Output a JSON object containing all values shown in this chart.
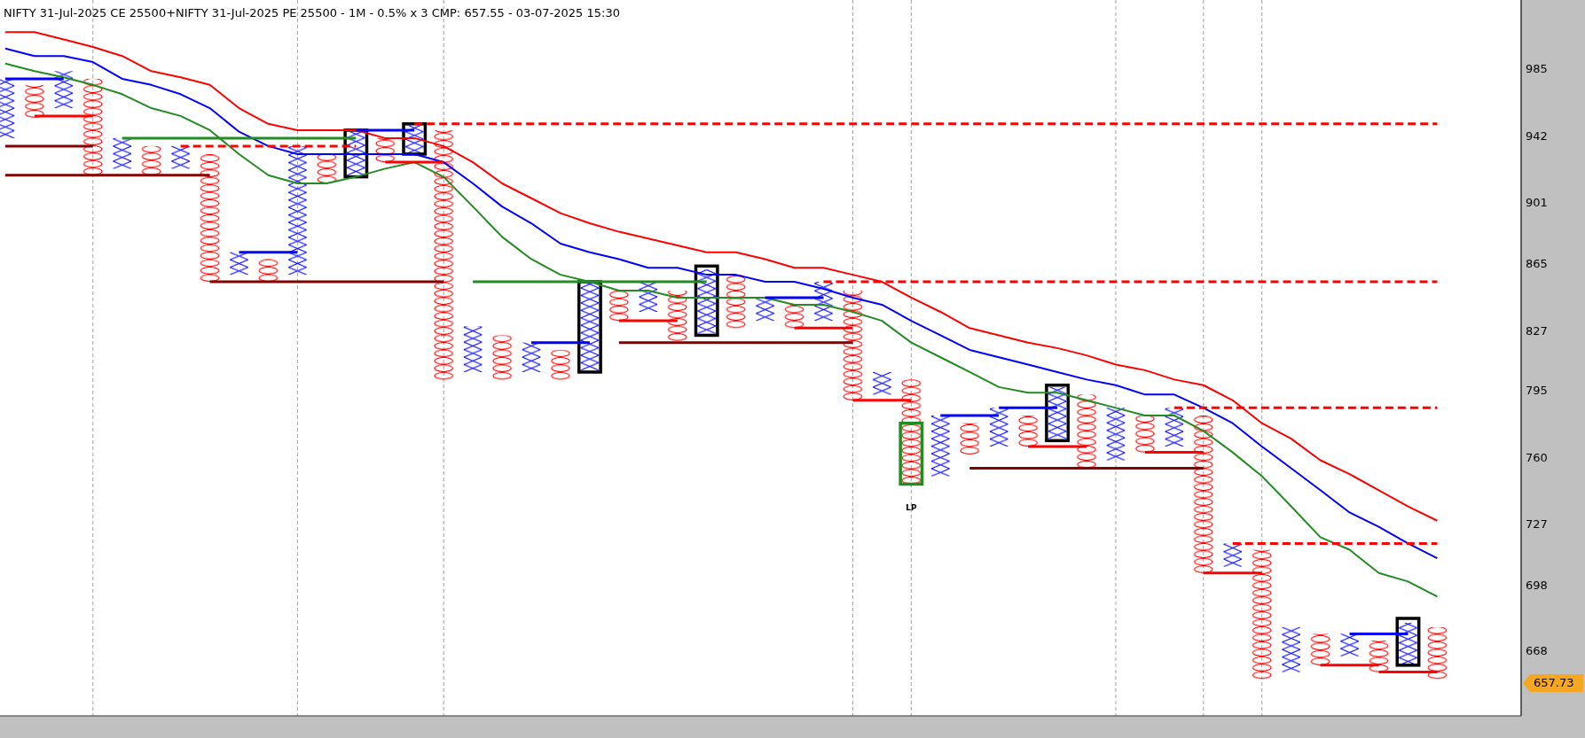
{
  "chart_data": {
    "type": "bar",
    "title": "NIFTY 31-Jul-2025 CE 25500+NIFTY 31-Jul-2025 PE 25500 - 1M - 0.5% x 3 CMP: 657.55 - 03-07-2025 15:30",
    "log": true,
    "tick_labels": "y",
    "ylim": [
      640,
      1030
    ],
    "yticks": [
      668,
      698,
      727,
      760,
      795,
      827,
      865,
      901,
      942,
      985
    ],
    "categories": [
      null,
      null,
      null,
      null,
      null,
      null,
      null,
      null,
      null,
      null,
      null,
      null,
      null,
      null,
      null,
      null,
      null,
      null,
      null,
      null,
      null,
      null,
      null,
      null,
      null,
      null,
      null,
      null,
      null,
      null,
      null,
      null,
      null,
      null,
      null,
      null,
      null,
      null,
      null,
      null,
      null,
      null,
      null,
      null,
      null,
      null,
      null,
      null,
      null,
      null
    ],
    "series": [
      {
        "base": [
          941,
          975,
          960,
          979,
          922,
          936,
          922,
          931,
          859,
          868,
          859,
          931,
          918,
          941,
          931,
          946,
          805,
          825,
          805,
          817,
          806,
          850,
          838,
          850,
          826,
          859,
          833,
          842,
          833,
          850,
          793,
          801,
          751,
          778,
          766,
          782,
          770,
          793,
          759,
          782,
          766,
          782,
          707,
          715,
          659,
          676,
          666,
          673,
          662,
          679
        ],
        "values": [
          38,
          -21,
          24,
          -61,
          19,
          -18,
          14,
          -76,
          13,
          -13,
          77,
          -18,
          27,
          -15,
          18,
          -145,
          25,
          -24,
          16,
          -16,
          48,
          -17,
          17,
          -28,
          36,
          -30,
          13,
          -13,
          22,
          -60,
          12,
          -54,
          31,
          -16,
          20,
          -16,
          27,
          -38,
          27,
          -19,
          20,
          -78,
          11,
          -59,
          20,
          -14,
          10,
          -14,
          19,
          -23
        ],
        "colors": [
          "#0000ff",
          "#ff0000",
          "#0000ff",
          "#ff0000",
          "#0000ff",
          "#ff0000",
          "#0000ff",
          "#ff0000",
          "#0000ff",
          "#ff0000",
          "#0000ff",
          "#ff0000",
          "#0000ff",
          "#ff0000",
          "#0000ff",
          "#ff0000",
          "#0000ff",
          "#ff0000",
          "#0000ff",
          "#ff0000",
          "#0000ff",
          "#ff0000",
          "#0000ff",
          "#ff0000",
          "#0000ff",
          "#ff0000",
          "#0000ff",
          "#ff0000",
          "#0000ff",
          "#ff0000",
          "#0000ff",
          "#ff0000",
          "#0000ff",
          "#ff0000",
          "#0000ff",
          "#ff0000",
          "#0000ff",
          "#ff0000",
          "#0000ff",
          "#ff0000",
          "#0000ff",
          "#ff0000",
          "#0000ff",
          "#ff0000",
          "#0000ff",
          "#ff0000",
          "#0000ff",
          "#ff0000",
          "#0000ff",
          "#ff0000"
        ]
      },
      {
        "type": "bar",
        "marker": "none",
        "base": [
          null,
          null,
          null,
          null,
          null,
          null,
          null,
          null,
          null,
          null,
          null,
          null,
          917,
          null,
          931,
          null,
          null,
          null,
          null,
          null,
          805,
          null,
          null,
          null,
          825,
          null,
          null,
          null,
          null,
          null,
          null,
          747,
          null,
          null,
          null,
          null,
          769,
          null,
          null,
          null,
          null,
          null,
          null,
          null,
          null,
          null,
          null,
          null,
          662,
          null
        ],
        "values": [
          null,
          null,
          null,
          null,
          null,
          null,
          null,
          null,
          null,
          null,
          null,
          null,
          29,
          null,
          19,
          null,
          null,
          null,
          null,
          null,
          50,
          null,
          null,
          null,
          39,
          null,
          null,
          null,
          null,
          null,
          null,
          31,
          null,
          null,
          null,
          null,
          29,
          null,
          null,
          null,
          null,
          null,
          null,
          null,
          null,
          null,
          null,
          null,
          21,
          null
        ],
        "colors": [
          null,
          null,
          null,
          null,
          null,
          null,
          null,
          null,
          null,
          null,
          null,
          null,
          "#000000",
          null,
          "#000000",
          null,
          null,
          null,
          null,
          null,
          "#000000",
          null,
          null,
          null,
          "#000000",
          null,
          null,
          null,
          null,
          null,
          null,
          "#228b22",
          null,
          null,
          null,
          null,
          "#000000",
          null,
          null,
          null,
          null,
          null,
          null,
          null,
          null,
          null,
          null,
          null,
          "#000000",
          null
        ],
        "value_labels": [
          null,
          null,
          null,
          null,
          null,
          null,
          null,
          null,
          null,
          null,
          null,
          null,
          null,
          null,
          null,
          null,
          null,
          null,
          null,
          null,
          null,
          null,
          null,
          null,
          null,
          null,
          null,
          null,
          null,
          null,
          null,
          "LP",
          null,
          null,
          null,
          null,
          null,
          null,
          null,
          null,
          null,
          null,
          null,
          null,
          null,
          null,
          null,
          null,
          null,
          null
        ]
      },
      {
        "type": "line",
        "color": "#ff0000",
        "values": [
          1010,
          1010,
          1005,
          1000,
          994,
          984,
          980,
          975,
          960,
          950,
          946,
          946,
          946,
          941,
          941,
          936,
          926,
          913,
          904,
          895,
          889,
          884,
          880,
          876,
          872,
          872,
          868,
          863,
          863,
          859,
          855,
          846,
          838,
          829,
          825,
          821,
          818,
          814,
          809,
          806,
          801,
          798,
          790,
          778,
          770,
          759,
          752,
          744,
          736,
          729
        ]
      },
      {
        "type": "line",
        "color": "#0000ff",
        "values": [
          999,
          994,
          994,
          990,
          979,
          975,
          969,
          960,
          945,
          936,
          931,
          931,
          931,
          931,
          931,
          926,
          913,
          899,
          889,
          877,
          872,
          868,
          863,
          863,
          859,
          859,
          855,
          855,
          851,
          846,
          842,
          833,
          825,
          817,
          813,
          809,
          805,
          801,
          798,
          793,
          793,
          786,
          778,
          766,
          755,
          744,
          733,
          726,
          718,
          711
        ]
      },
      {
        "type": "line",
        "color": "#228b22",
        "values": [
          989,
          984,
          980,
          975,
          969,
          960,
          955,
          946,
          931,
          918,
          913,
          913,
          917,
          922,
          926,
          917,
          899,
          881,
          868,
          859,
          855,
          850,
          850,
          846,
          846,
          846,
          846,
          842,
          842,
          838,
          833,
          821,
          813,
          805,
          797,
          794,
          794,
          790,
          786,
          782,
          782,
          774,
          763,
          751,
          736,
          721,
          715,
          704,
          700,
          693
        ]
      },
      {
        "type": "line",
        "color": "#0000ff",
        "values": [
          979,
          979,
          979,
          null,
          null,
          null,
          null,
          null,
          null,
          null,
          null,
          null,
          null,
          null,
          null,
          null,
          null,
          null,
          null,
          null,
          null,
          null,
          null,
          null,
          null,
          null,
          null,
          null,
          null,
          null,
          null,
          null,
          null,
          null,
          null,
          null,
          null,
          null,
          null,
          null,
          null,
          null,
          null,
          null,
          null,
          null,
          null,
          null,
          null,
          null
        ]
      },
      {
        "type": "line",
        "color": "#ff0000",
        "values": [
          null,
          955,
          955,
          955,
          null,
          null,
          null,
          null,
          null,
          null,
          null,
          null,
          null,
          null,
          null,
          null,
          null,
          null,
          null,
          null,
          null,
          null,
          null,
          null,
          null,
          null,
          null,
          null,
          null,
          null,
          null,
          null,
          null,
          null,
          null,
          null,
          null,
          null,
          null,
          null,
          null,
          null,
          null,
          null,
          null,
          null,
          null,
          null,
          null,
          null
        ]
      },
      {
        "type": "line",
        "color": "#800000",
        "values": [
          936,
          936,
          936,
          936,
          null,
          null,
          null,
          null,
          null,
          null,
          null,
          null,
          null,
          null,
          null,
          null,
          null,
          null,
          null,
          null,
          null,
          null,
          null,
          null,
          null,
          null,
          null,
          null,
          null,
          null,
          null,
          null,
          null,
          null,
          null,
          null,
          null,
          null,
          null,
          null,
          null,
          null,
          null,
          null,
          null,
          null,
          null,
          null,
          null,
          null
        ]
      },
      {
        "type": "line",
        "color": "#800000",
        "values": [
          918,
          918,
          918,
          918,
          918,
          918,
          918,
          918,
          null,
          null,
          null,
          null,
          null,
          null,
          null,
          null,
          null,
          null,
          null,
          null,
          null,
          null,
          null,
          null,
          null,
          null,
          null,
          null,
          null,
          null,
          null,
          null,
          null,
          null,
          null,
          null,
          null,
          null,
          null,
          null,
          null,
          null,
          null,
          null,
          null,
          null,
          null,
          null,
          null,
          null
        ]
      },
      {
        "type": "line",
        "color": "#228b22",
        "values": [
          null,
          null,
          null,
          null,
          941,
          941,
          941,
          941,
          941,
          941,
          941,
          941,
          941,
          null,
          null,
          null,
          null,
          null,
          null,
          null,
          null,
          null,
          null,
          null,
          null,
          null,
          null,
          null,
          null,
          null,
          null,
          null,
          null,
          null,
          null,
          null,
          null,
          null,
          null,
          null,
          null,
          null,
          null,
          null,
          null,
          null,
          null,
          null,
          null,
          null
        ]
      },
      {
        "type": "line",
        "color": "#ff0000",
        "line_style": "dashed",
        "values": [
          null,
          null,
          null,
          null,
          null,
          null,
          936,
          936,
          936,
          936,
          936,
          936,
          936,
          null,
          null,
          null,
          null,
          null,
          null,
          null,
          null,
          null,
          null,
          null,
          null,
          null,
          null,
          null,
          null,
          null,
          null,
          null,
          null,
          null,
          null,
          null,
          null,
          null,
          null,
          null,
          null,
          null,
          null,
          null,
          null,
          null,
          null,
          null,
          null,
          null
        ]
      },
      {
        "type": "line",
        "color": "#0000ff",
        "values": [
          null,
          null,
          null,
          null,
          null,
          null,
          null,
          null,
          872,
          872,
          872,
          null,
          null,
          null,
          null,
          null,
          null,
          null,
          null,
          null,
          null,
          null,
          null,
          null,
          null,
          null,
          null,
          null,
          null,
          null,
          null,
          null,
          null,
          null,
          null,
          null,
          null,
          null,
          null,
          null,
          null,
          null,
          null,
          null,
          null,
          null,
          null,
          null,
          null,
          null
        ]
      },
      {
        "type": "line",
        "color": "#800000",
        "values": [
          null,
          null,
          null,
          null,
          null,
          null,
          null,
          855,
          855,
          855,
          855,
          855,
          855,
          855,
          855,
          855,
          null,
          null,
          null,
          null,
          null,
          null,
          null,
          null,
          null,
          null,
          null,
          null,
          null,
          null,
          null,
          null,
          null,
          null,
          null,
          null,
          null,
          null,
          null,
          null,
          null,
          null,
          null,
          null,
          null,
          null,
          null,
          null,
          null,
          null
        ]
      },
      {
        "type": "line",
        "color": "#0000ff",
        "values": [
          null,
          null,
          null,
          null,
          null,
          null,
          null,
          null,
          null,
          null,
          null,
          null,
          946,
          946,
          946,
          null,
          null,
          null,
          null,
          null,
          null,
          null,
          null,
          null,
          null,
          null,
          null,
          null,
          null,
          null,
          null,
          null,
          null,
          null,
          null,
          null,
          null,
          null,
          null,
          null,
          null,
          null,
          null,
          null,
          null,
          null,
          null,
          null,
          null,
          null
        ]
      },
      {
        "type": "line",
        "color": "#ff0000",
        "values": [
          null,
          null,
          null,
          null,
          null,
          null,
          null,
          null,
          null,
          null,
          null,
          null,
          null,
          926,
          926,
          926,
          null,
          null,
          null,
          null,
          null,
          null,
          null,
          null,
          null,
          null,
          null,
          null,
          null,
          null,
          null,
          null,
          null,
          null,
          null,
          null,
          null,
          null,
          null,
          null,
          null,
          null,
          null,
          null,
          null,
          null,
          null,
          null,
          null,
          null
        ]
      },
      {
        "type": "line",
        "color": "#ff0000",
        "line_style": "dashed",
        "values": [
          null,
          null,
          null,
          null,
          null,
          null,
          null,
          null,
          null,
          null,
          null,
          null,
          null,
          null,
          950,
          950,
          950,
          950,
          950,
          950,
          950,
          950,
          950,
          950,
          950,
          950,
          950,
          950,
          950,
          950,
          950,
          950,
          950,
          950,
          950,
          950,
          950,
          950,
          950,
          950,
          950,
          950,
          950,
          950,
          950,
          950,
          950,
          950,
          950,
          950
        ]
      },
      {
        "type": "line",
        "color": "#228b22",
        "values": [
          null,
          null,
          null,
          null,
          null,
          null,
          null,
          null,
          null,
          null,
          null,
          null,
          null,
          null,
          null,
          null,
          855,
          855,
          855,
          855,
          855,
          855,
          855,
          855,
          855,
          null,
          null,
          null,
          null,
          null,
          null,
          null,
          null,
          null,
          null,
          null,
          null,
          null,
          null,
          null,
          null,
          null,
          null,
          null,
          null,
          null,
          null,
          null,
          null,
          null
        ]
      },
      {
        "type": "line",
        "color": "#0000ff",
        "values": [
          null,
          null,
          null,
          null,
          null,
          null,
          null,
          null,
          null,
          null,
          null,
          null,
          null,
          null,
          null,
          null,
          null,
          null,
          821,
          821,
          821,
          null,
          null,
          null,
          null,
          null,
          null,
          null,
          null,
          null,
          null,
          null,
          null,
          null,
          null,
          null,
          null,
          null,
          null,
          null,
          null,
          null,
          null,
          null,
          null,
          null,
          null,
          null,
          null,
          null
        ]
      },
      {
        "type": "line",
        "color": "#ff0000",
        "values": [
          null,
          null,
          null,
          null,
          null,
          null,
          null,
          null,
          null,
          null,
          null,
          null,
          null,
          null,
          null,
          null,
          null,
          null,
          null,
          null,
          null,
          833,
          833,
          833,
          null,
          null,
          null,
          null,
          null,
          null,
          null,
          null,
          null,
          null,
          null,
          null,
          null,
          null,
          null,
          null,
          null,
          null,
          null,
          null,
          null,
          null,
          null,
          null,
          null,
          null
        ]
      },
      {
        "type": "line",
        "color": "#800000",
        "values": [
          null,
          null,
          null,
          null,
          null,
          null,
          null,
          null,
          null,
          null,
          null,
          null,
          null,
          null,
          null,
          null,
          null,
          null,
          null,
          null,
          null,
          821,
          821,
          821,
          821,
          821,
          821,
          821,
          821,
          821,
          null,
          null,
          null,
          null,
          null,
          null,
          null,
          null,
          null,
          null,
          null,
          null,
          null,
          null,
          null,
          null,
          null,
          null,
          null,
          null
        ]
      },
      {
        "type": "line",
        "color": "#0000ff",
        "values": [
          null,
          null,
          null,
          null,
          null,
          null,
          null,
          null,
          null,
          null,
          null,
          null,
          null,
          null,
          null,
          null,
          null,
          null,
          null,
          null,
          null,
          null,
          null,
          null,
          null,
          null,
          846,
          846,
          846,
          null,
          null,
          null,
          null,
          null,
          null,
          null,
          null,
          null,
          null,
          null,
          null,
          null,
          null,
          null,
          null,
          null,
          null,
          null,
          null,
          null
        ]
      },
      {
        "type": "line",
        "color": "#ff0000",
        "values": [
          null,
          null,
          null,
          null,
          null,
          null,
          null,
          null,
          null,
          null,
          null,
          null,
          null,
          null,
          null,
          null,
          null,
          null,
          null,
          null,
          null,
          null,
          null,
          null,
          null,
          null,
          null,
          829,
          829,
          829,
          null,
          null,
          null,
          null,
          null,
          null,
          null,
          null,
          null,
          null,
          null,
          null,
          null,
          null,
          null,
          null,
          null,
          null,
          null,
          null
        ]
      },
      {
        "type": "line",
        "color": "#ff0000",
        "line_style": "dashed",
        "values": [
          null,
          null,
          null,
          null,
          null,
          null,
          null,
          null,
          null,
          null,
          null,
          null,
          null,
          null,
          null,
          null,
          null,
          null,
          null,
          null,
          null,
          null,
          null,
          null,
          null,
          null,
          null,
          null,
          855,
          855,
          855,
          855,
          855,
          855,
          855,
          855,
          855,
          855,
          855,
          855,
          855,
          855,
          855,
          855,
          855,
          855,
          855,
          855,
          855,
          855
        ]
      },
      {
        "type": "line",
        "color": "#ff0000",
        "values": [
          null,
          null,
          null,
          null,
          null,
          null,
          null,
          null,
          null,
          null,
          null,
          null,
          null,
          null,
          null,
          null,
          null,
          null,
          null,
          null,
          null,
          null,
          null,
          null,
          null,
          null,
          null,
          null,
          null,
          790,
          790,
          790,
          null,
          null,
          null,
          null,
          null,
          null,
          null,
          null,
          null,
          null,
          null,
          null,
          null,
          null,
          null,
          null,
          null,
          null
        ]
      },
      {
        "type": "line",
        "color": "#0000ff",
        "values": [
          null,
          null,
          null,
          null,
          null,
          null,
          null,
          null,
          null,
          null,
          null,
          null,
          null,
          null,
          null,
          null,
          null,
          null,
          null,
          null,
          null,
          null,
          null,
          null,
          null,
          null,
          null,
          null,
          null,
          null,
          null,
          null,
          782,
          782,
          782,
          null,
          null,
          null,
          null,
          null,
          null,
          null,
          null,
          null,
          null,
          null,
          null,
          null,
          null,
          null
        ]
      },
      {
        "type": "line",
        "color": "#0000ff",
        "values": [
          null,
          null,
          null,
          null,
          null,
          null,
          null,
          null,
          null,
          null,
          null,
          null,
          null,
          null,
          null,
          null,
          null,
          null,
          null,
          null,
          null,
          null,
          null,
          null,
          null,
          null,
          null,
          null,
          null,
          null,
          null,
          null,
          null,
          null,
          786,
          786,
          786,
          null,
          null,
          null,
          null,
          null,
          null,
          null,
          null,
          null,
          null,
          null,
          null,
          null
        ]
      },
      {
        "type": "line",
        "color": "#ff0000",
        "values": [
          null,
          null,
          null,
          null,
          null,
          null,
          null,
          null,
          null,
          null,
          null,
          null,
          null,
          null,
          null,
          null,
          null,
          null,
          null,
          null,
          null,
          null,
          null,
          null,
          null,
          null,
          null,
          null,
          null,
          null,
          null,
          null,
          null,
          null,
          null,
          766,
          766,
          766,
          null,
          null,
          null,
          null,
          null,
          null,
          null,
          null,
          null,
          null,
          null,
          null
        ]
      },
      {
        "type": "line",
        "color": "#800000",
        "values": [
          null,
          null,
          null,
          null,
          null,
          null,
          null,
          null,
          null,
          null,
          null,
          null,
          null,
          null,
          null,
          null,
          null,
          null,
          null,
          null,
          null,
          null,
          null,
          null,
          null,
          null,
          null,
          null,
          null,
          null,
          null,
          null,
          null,
          755,
          755,
          755,
          755,
          755,
          755,
          755,
          755,
          755,
          null,
          null,
          null,
          null,
          null,
          null,
          null,
          null
        ]
      },
      {
        "type": "line",
        "color": "#ff0000",
        "values": [
          null,
          null,
          null,
          null,
          null,
          null,
          null,
          null,
          null,
          null,
          null,
          null,
          null,
          null,
          null,
          null,
          null,
          null,
          null,
          null,
          null,
          null,
          null,
          null,
          null,
          null,
          null,
          null,
          null,
          null,
          null,
          null,
          null,
          null,
          null,
          null,
          null,
          null,
          null,
          763,
          763,
          763,
          null,
          null,
          null,
          null,
          null,
          null,
          null,
          null
        ]
      },
      {
        "type": "line",
        "color": "#ff0000",
        "line_style": "dashed",
        "values": [
          null,
          null,
          null,
          null,
          null,
          null,
          null,
          null,
          null,
          null,
          null,
          null,
          null,
          null,
          null,
          null,
          null,
          null,
          null,
          null,
          null,
          null,
          null,
          null,
          null,
          null,
          null,
          null,
          null,
          null,
          null,
          null,
          null,
          null,
          null,
          null,
          null,
          null,
          null,
          null,
          786,
          786,
          786,
          786,
          786,
          786,
          786,
          786,
          786,
          786
        ]
      },
      {
        "type": "line",
        "color": "#ff0000",
        "values": [
          null,
          null,
          null,
          null,
          null,
          null,
          null,
          null,
          null,
          null,
          null,
          null,
          null,
          null,
          null,
          null,
          null,
          null,
          null,
          null,
          null,
          null,
          null,
          null,
          null,
          null,
          null,
          null,
          null,
          null,
          null,
          null,
          null,
          null,
          null,
          null,
          null,
          null,
          null,
          null,
          null,
          704,
          704,
          704,
          null,
          null,
          null,
          null,
          null,
          null
        ]
      },
      {
        "type": "line",
        "color": "#ff0000",
        "line_style": "dashed",
        "values": [
          null,
          null,
          null,
          null,
          null,
          null,
          null,
          null,
          null,
          null,
          null,
          null,
          null,
          null,
          null,
          null,
          null,
          null,
          null,
          null,
          null,
          null,
          null,
          null,
          null,
          null,
          null,
          null,
          null,
          null,
          null,
          null,
          null,
          null,
          null,
          null,
          null,
          null,
          null,
          null,
          null,
          null,
          718,
          718,
          718,
          718,
          718,
          718,
          718,
          718
        ]
      },
      {
        "type": "line",
        "color": "#0000ff",
        "values": [
          null,
          null,
          null,
          null,
          null,
          null,
          null,
          null,
          null,
          null,
          null,
          null,
          null,
          null,
          null,
          null,
          null,
          null,
          null,
          null,
          null,
          null,
          null,
          null,
          null,
          null,
          null,
          null,
          null,
          null,
          null,
          null,
          null,
          null,
          null,
          null,
          null,
          null,
          null,
          null,
          null,
          null,
          null,
          null,
          null,
          null,
          676,
          676,
          676,
          null
        ]
      },
      {
        "type": "line",
        "color": "#ff0000",
        "values": [
          null,
          null,
          null,
          null,
          null,
          null,
          null,
          null,
          null,
          null,
          null,
          null,
          null,
          null,
          null,
          null,
          null,
          null,
          null,
          null,
          null,
          null,
          null,
          null,
          null,
          null,
          null,
          null,
          null,
          null,
          null,
          null,
          null,
          null,
          null,
          null,
          null,
          null,
          null,
          null,
          null,
          null,
          null,
          null,
          null,
          662,
          662,
          662,
          null,
          null
        ]
      },
      {
        "type": "line",
        "color": "#ff0000",
        "values": [
          null,
          null,
          null,
          null,
          null,
          null,
          null,
          null,
          null,
          null,
          null,
          null,
          null,
          null,
          null,
          null,
          null,
          null,
          null,
          null,
          null,
          null,
          null,
          null,
          null,
          null,
          null,
          null,
          null,
          null,
          null,
          null,
          null,
          null,
          null,
          null,
          null,
          null,
          null,
          null,
          null,
          null,
          null,
          null,
          null,
          null,
          null,
          659,
          659,
          659
        ]
      }
    ],
    "grid": "x",
    "annotations": [
      "657.73"
    ]
  }
}
